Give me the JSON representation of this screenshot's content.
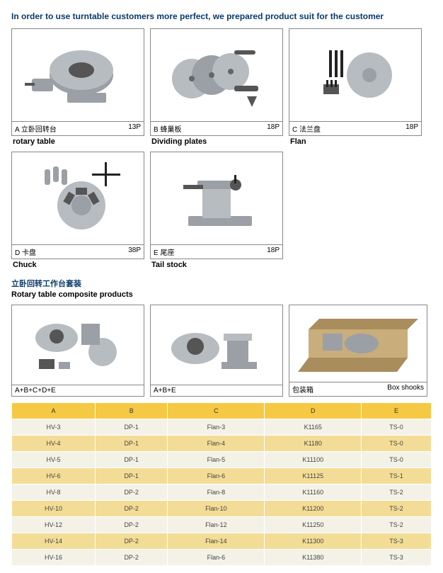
{
  "heading": "In order to use turntable customers more perfect, we prepared product suit for the customer",
  "cards": [
    {
      "code": "A 立卧回转台",
      "page": "13P",
      "caption": "rotary table"
    },
    {
      "code": "B 蜂巢板",
      "page": "18P",
      "caption": "Dividing plates"
    },
    {
      "code": "C 法兰盘",
      "page": "18P",
      "caption": "Flan"
    },
    {
      "code": "D 卡盘",
      "page": "38P",
      "caption": "Chuck"
    },
    {
      "code": "E 尾座",
      "page": "18P",
      "caption": "Tail stock"
    }
  ],
  "section2_cn": "立卧回转工作台套装",
  "section2_en": "Rotary table composite products",
  "composites": [
    {
      "label_left": "A+B+C+D+E",
      "label_right": "",
      "size": "small"
    },
    {
      "label_left": "A+B+E",
      "label_right": "",
      "size": "small"
    },
    {
      "label_left": "包装箱",
      "label_right": "Box shooks",
      "size": "big"
    }
  ],
  "table": {
    "headers": [
      "A",
      "B",
      "C",
      "D",
      "E"
    ],
    "rows": [
      [
        "HV-3",
        "DP-1",
        "Flan-3",
        "K1165",
        "TS-0"
      ],
      [
        "HV-4",
        "DP-1",
        "Flan-4",
        "K1180",
        "TS-0"
      ],
      [
        "HV-5",
        "DP-1",
        "Flan-5",
        "K11100",
        "TS-0"
      ],
      [
        "HV-6",
        "DP-1",
        "Flan-6",
        "K11125",
        "TS-1"
      ],
      [
        "HV-8",
        "DP-2",
        "Flan-8",
        "K11160",
        "TS-2"
      ],
      [
        "HV-10",
        "DP-2",
        "Flan-10",
        "K11200",
        "TS-2"
      ],
      [
        "HV-12",
        "DP-2",
        "Flan-12",
        "K11250",
        "TS-2"
      ],
      [
        "HV-14",
        "DP-2",
        "Flan-14",
        "K11300",
        "TS-3"
      ],
      [
        "HV-16",
        "DP-2",
        "Flan-6",
        "K11380",
        "TS-3"
      ]
    ],
    "header_bg": "#f5c944",
    "row_even_bg": "#f4f2e7",
    "row_odd_bg": "#f3dd96"
  }
}
